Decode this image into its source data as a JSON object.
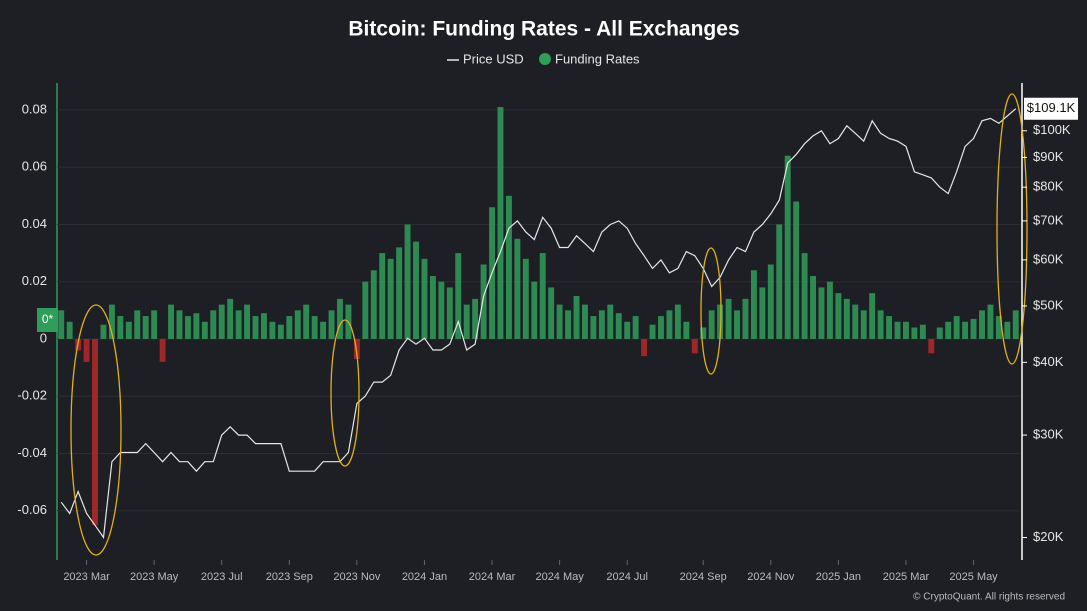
{
  "chart_data": {
    "type": "bar-line",
    "title": "Bitcoin: Funding Rates - All Exchanges",
    "zero_tag": "0*",
    "footer": "© CryptoQuant. All rights reserved",
    "grid": true,
    "categories": [
      null,
      null,
      null,
      "2023 Mar",
      null,
      null,
      null,
      null,
      null,
      null,
      null,
      "2023 May",
      null,
      null,
      null,
      null,
      null,
      null,
      null,
      "2023 Jul",
      null,
      null,
      null,
      null,
      null,
      null,
      null,
      "2023 Sep",
      null,
      null,
      null,
      null,
      null,
      null,
      null,
      "2023 Nov",
      null,
      null,
      null,
      null,
      null,
      null,
      null,
      "2024 Jan",
      null,
      null,
      null,
      null,
      null,
      null,
      null,
      "2024 Mar",
      null,
      null,
      null,
      null,
      null,
      null,
      null,
      "2024 May",
      null,
      null,
      null,
      null,
      null,
      null,
      null,
      "2024 Jul",
      null,
      null,
      null,
      null,
      null,
      null,
      null,
      null,
      "2024 Sep",
      null,
      null,
      null,
      null,
      null,
      null,
      null,
      "2024 Nov",
      null,
      null,
      null,
      null,
      null,
      null,
      null,
      "2025 Jan",
      null,
      null,
      null,
      null,
      null,
      null,
      null,
      "2025 Mar",
      null,
      null,
      null,
      null,
      null,
      null,
      null,
      "2025 May",
      null,
      null,
      null,
      null,
      null
    ],
    "series": [
      {
        "name": "Price USD",
        "color": "#e6e6e6",
        "axis": "y2",
        "current_price_label": "$109.1K",
        "values": [
          23,
          22,
          24,
          22,
          21,
          20,
          27,
          28,
          28,
          28,
          29,
          28,
          27,
          28,
          27,
          27,
          26,
          27,
          27,
          30,
          31,
          30,
          30,
          29,
          29,
          29,
          29,
          26,
          26,
          26,
          26,
          27,
          27,
          27,
          28,
          34,
          35,
          37,
          37,
          38,
          42,
          44,
          43,
          44,
          42,
          42,
          43,
          47,
          42,
          43,
          52,
          57,
          62,
          68,
          70,
          67,
          65,
          71,
          68,
          63,
          63,
          66,
          64,
          62,
          67,
          69,
          70,
          68,
          64,
          61,
          58,
          60,
          57,
          58,
          62,
          61,
          58,
          54,
          56,
          60,
          63,
          62,
          67,
          69,
          72,
          76,
          88,
          91,
          95,
          98,
          100,
          95,
          97,
          102,
          99,
          96,
          104,
          99,
          97,
          96,
          94,
          85,
          84,
          83,
          80,
          78,
          85,
          94,
          97,
          104,
          105,
          103,
          106,
          109.1
        ]
      },
      {
        "name": "Funding Rates",
        "color": "#2f9e5b",
        "negative_color": "#b52a2a",
        "values": [
          0.01,
          0.006,
          -0.004,
          -0.008,
          -0.065,
          0.005,
          0.012,
          0.008,
          0.006,
          0.01,
          0.008,
          0.01,
          -0.008,
          0.012,
          0.01,
          0.008,
          0.009,
          0.006,
          0.01,
          0.012,
          0.014,
          0.01,
          0.012,
          0.008,
          0.009,
          0.006,
          0.005,
          0.008,
          0.01,
          0.012,
          0.008,
          0.006,
          0.01,
          0.014,
          0.012,
          -0.007,
          0.02,
          0.024,
          0.03,
          0.028,
          0.032,
          0.04,
          0.034,
          0.028,
          0.022,
          0.02,
          0.018,
          0.03,
          0.012,
          0.014,
          0.026,
          0.046,
          0.081,
          0.05,
          0.035,
          0.028,
          0.02,
          0.03,
          0.018,
          0.012,
          0.01,
          0.015,
          0.012,
          0.008,
          0.01,
          0.012,
          0.009,
          0.006,
          0.008,
          -0.006,
          0.005,
          0.008,
          0.01,
          0.012,
          0.006,
          -0.005,
          0.004,
          0.01,
          0.012,
          0.014,
          0.01,
          0.014,
          0.024,
          0.018,
          0.026,
          0.04,
          0.064,
          0.048,
          0.03,
          0.022,
          0.018,
          0.02,
          0.016,
          0.014,
          0.012,
          0.01,
          0.016,
          0.01,
          0.008,
          0.006,
          0.006,
          0.004,
          0.005,
          -0.005,
          0.004,
          0.006,
          0.008,
          0.006,
          0.007,
          0.01,
          0.012,
          0.008,
          0.006,
          0.01
        ]
      }
    ],
    "ylim": [
      -0.0772,
      0.0894
    ],
    "yticks": [
      -0.06,
      -0.04,
      -0.02,
      0,
      0.02,
      0.04,
      0.06,
      0.08
    ],
    "y2log": true,
    "y2lim": [
      18.3,
      120.8
    ],
    "y2ticks": [
      {
        "value": 20,
        "label": "$20K"
      },
      {
        "value": 30,
        "label": "$30K"
      },
      {
        "value": 40,
        "label": "$40K"
      },
      {
        "value": 50,
        "label": "$50K"
      },
      {
        "value": 60,
        "label": "$60K"
      },
      {
        "value": 70,
        "label": "$70K"
      },
      {
        "value": 80,
        "label": "$80K"
      },
      {
        "value": 90,
        "label": "$90K"
      },
      {
        "value": 100,
        "label": "$100K"
      }
    ]
  }
}
